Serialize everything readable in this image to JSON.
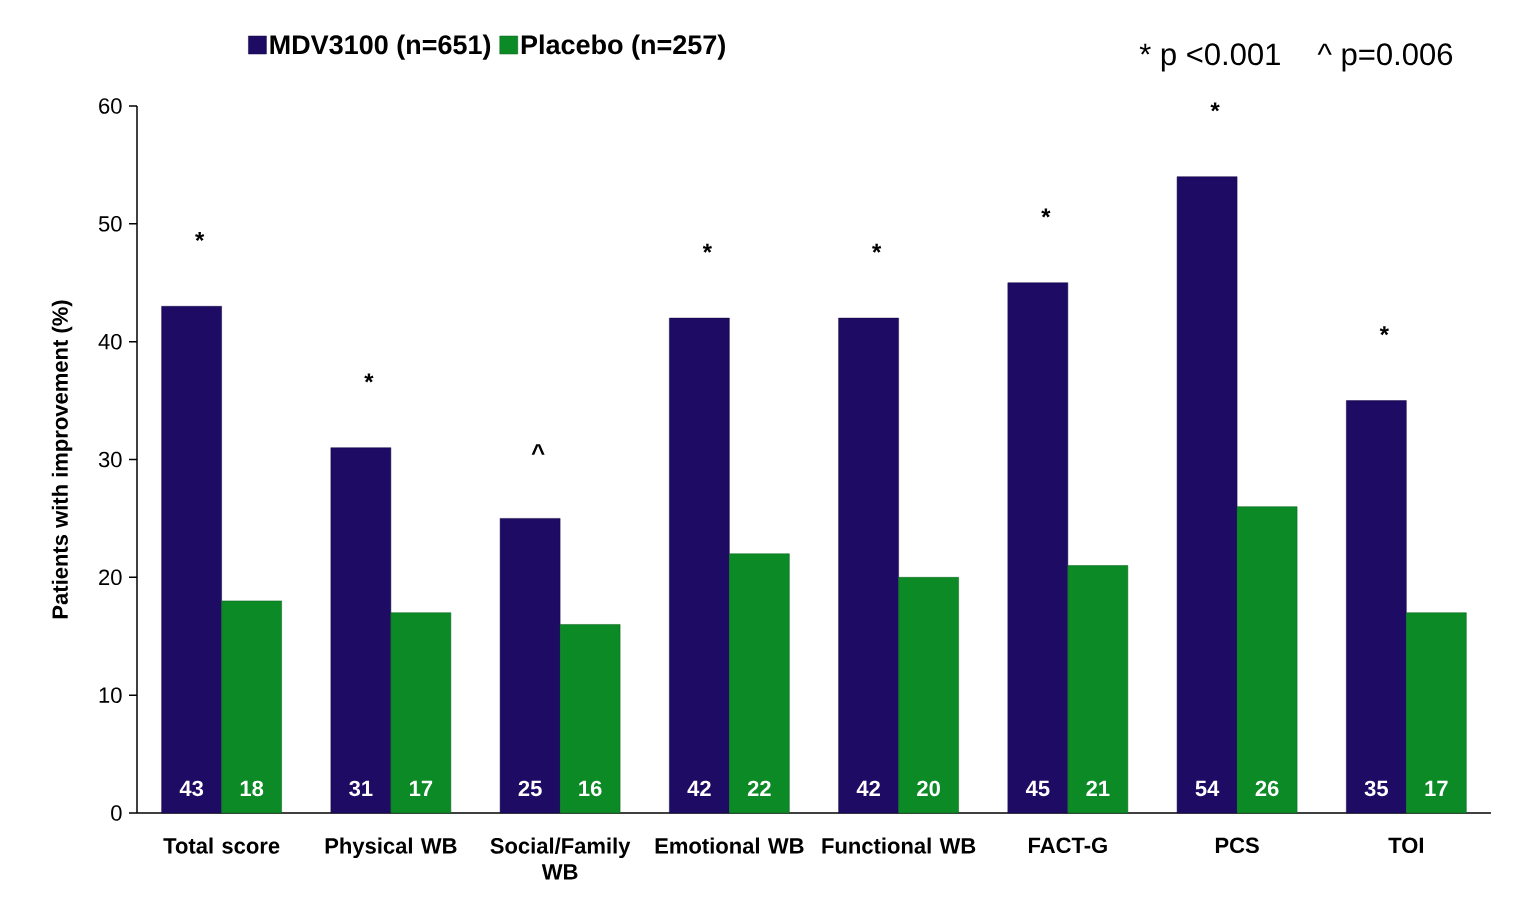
{
  "chart_data": {
    "type": "bar",
    "categories": [
      "Total score",
      "Physical WB",
      "Social/Family WB",
      "Emotional WB",
      "Functional WB",
      "FACT-G",
      "PCS",
      "TOI"
    ],
    "series": [
      {
        "name": "MDV3100 (n=651)",
        "color": "#1e0b63",
        "values": [
          43,
          31,
          25,
          42,
          42,
          45,
          54,
          35
        ]
      },
      {
        "name": "Placebo (n=257)",
        "color": "#0b8a26",
        "values": [
          18,
          17,
          16,
          22,
          20,
          21,
          26,
          17
        ]
      }
    ],
    "ylabel": "Patients with improvement (%)",
    "ylim": [
      0,
      60
    ],
    "yticks": [
      0,
      10,
      20,
      30,
      40,
      50,
      60
    ],
    "data_labels": true,
    "legend": "top left",
    "annotations": [
      {
        "text": "*",
        "x": "Total score",
        "y": 43
      },
      {
        "text": "*",
        "x": "Physical WB",
        "y": 31
      },
      {
        "text": "^",
        "x": "Social/Family WB",
        "y": 25
      },
      {
        "text": "*",
        "x": "Emotional WB",
        "y": 42
      },
      {
        "text": "*",
        "x": "Functional WB",
        "y": 42
      },
      {
        "text": "*",
        "x": "FACT-G",
        "y": 45
      },
      {
        "text": "*",
        "x": "PCS",
        "y": 54
      },
      {
        "text": "*",
        "x": "TOI",
        "y": 35
      },
      "* p <0.001",
      "^ p=0.006"
    ]
  }
}
